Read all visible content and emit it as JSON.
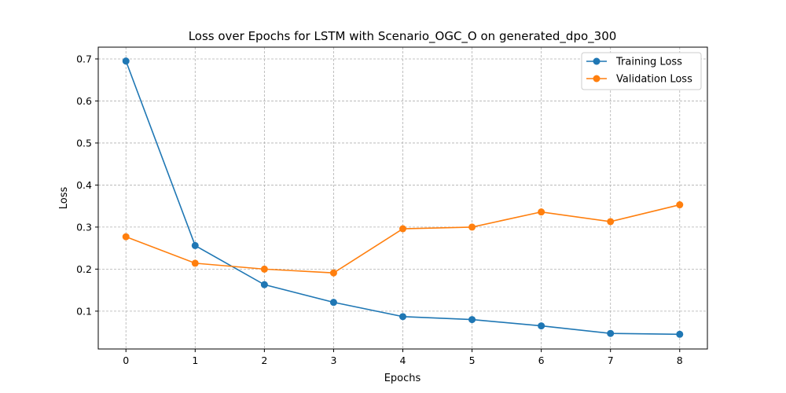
{
  "chart_data": {
    "type": "line",
    "title": "Loss over Epochs for LSTM with Scenario_OGC_O on generated_dpo_300",
    "xlabel": "Epochs",
    "ylabel": "Loss",
    "x": [
      0,
      1,
      2,
      3,
      4,
      5,
      6,
      7,
      8
    ],
    "xlim": [
      -0.4,
      8.4
    ],
    "ylim": [
      0.01,
      0.728
    ],
    "xticks": [
      0,
      1,
      2,
      3,
      4,
      5,
      6,
      7,
      8
    ],
    "yticks": [
      0.1,
      0.2,
      0.3,
      0.4,
      0.5,
      0.6,
      0.7
    ],
    "ytick_labels": [
      "0.1",
      "0.2",
      "0.3",
      "0.4",
      "0.5",
      "0.6",
      "0.7"
    ],
    "grid": true,
    "legend_position": "top-right",
    "series": [
      {
        "name": "Training Loss",
        "color": "#1f77b4",
        "marker": "circle",
        "values": [
          0.695,
          0.256,
          0.163,
          0.121,
          0.087,
          0.08,
          0.065,
          0.047,
          0.045
        ]
      },
      {
        "name": "Validation Loss",
        "color": "#ff7f0e",
        "marker": "circle",
        "values": [
          0.277,
          0.214,
          0.2,
          0.191,
          0.296,
          0.3,
          0.336,
          0.313,
          0.353
        ]
      }
    ]
  }
}
